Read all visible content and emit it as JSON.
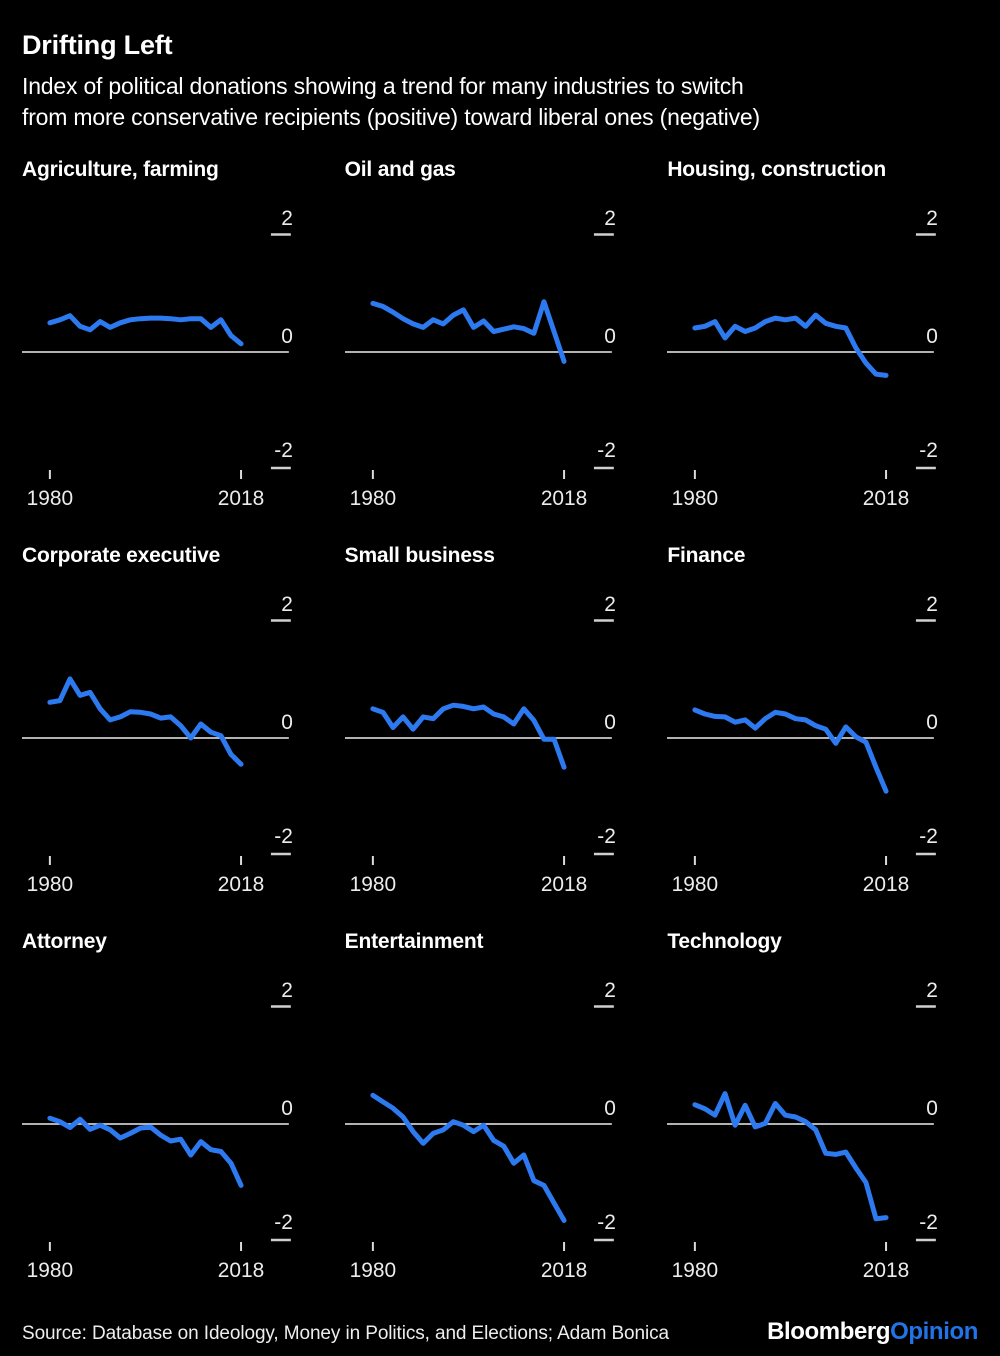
{
  "header": {
    "title": "Drifting Left",
    "subtitle_line1": "Index of political donations showing a trend for many industries to switch",
    "subtitle_line2": "from more conservative recipients (positive) toward liberal ones (negative)"
  },
  "chart_data": {
    "type": "line",
    "layout": "3x3 small multiples",
    "x": [
      1980,
      1982,
      1984,
      1986,
      1988,
      1990,
      1992,
      1994,
      1996,
      1998,
      2000,
      2002,
      2004,
      2006,
      2008,
      2010,
      2012,
      2014,
      2016,
      2018
    ],
    "ylim": [
      -2,
      2
    ],
    "y_tick_labels": [
      "2",
      "0",
      "-2"
    ],
    "x_tick_labels": [
      "1980",
      "2018"
    ],
    "grid": "zero line only",
    "line_color": "#2d7af0",
    "series": [
      {
        "name": "Agriculture, farming",
        "values": [
          0.5,
          0.55,
          0.62,
          0.44,
          0.38,
          0.52,
          0.42,
          0.5,
          0.55,
          0.57,
          0.58,
          0.58,
          0.57,
          0.55,
          0.57,
          0.57,
          0.42,
          0.55,
          0.28,
          0.14
        ]
      },
      {
        "name": "Oil and gas",
        "values": [
          0.83,
          0.78,
          0.68,
          0.57,
          0.48,
          0.42,
          0.55,
          0.48,
          0.63,
          0.72,
          0.42,
          0.53,
          0.35,
          0.39,
          0.43,
          0.4,
          0.32,
          0.86,
          0.35,
          -0.16
        ]
      },
      {
        "name": "Housing, construction",
        "values": [
          0.41,
          0.44,
          0.52,
          0.24,
          0.44,
          0.35,
          0.41,
          0.52,
          0.58,
          0.55,
          0.58,
          0.44,
          0.63,
          0.49,
          0.44,
          0.41,
          0.07,
          -0.19,
          -0.38,
          -0.4
        ]
      },
      {
        "name": "Corporate executive",
        "values": [
          0.61,
          0.64,
          1.01,
          0.73,
          0.78,
          0.5,
          0.31,
          0.36,
          0.45,
          0.44,
          0.41,
          0.34,
          0.36,
          0.21,
          0.0,
          0.24,
          0.1,
          0.04,
          -0.28,
          -0.45
        ]
      },
      {
        "name": "Small business",
        "values": [
          0.5,
          0.44,
          0.18,
          0.36,
          0.15,
          0.36,
          0.33,
          0.5,
          0.56,
          0.54,
          0.5,
          0.53,
          0.41,
          0.36,
          0.24,
          0.5,
          0.3,
          -0.02,
          -0.02,
          -0.5
        ]
      },
      {
        "name": "Finance",
        "values": [
          0.48,
          0.41,
          0.37,
          0.36,
          0.27,
          0.31,
          0.17,
          0.33,
          0.44,
          0.41,
          0.33,
          0.31,
          0.21,
          0.15,
          -0.09,
          0.19,
          0.02,
          -0.07,
          -0.5,
          -0.91
        ]
      },
      {
        "name": "Attorney",
        "values": [
          0.1,
          0.04,
          -0.06,
          0.08,
          -0.09,
          -0.02,
          -0.1,
          -0.24,
          -0.16,
          -0.07,
          -0.05,
          -0.19,
          -0.29,
          -0.26,
          -0.53,
          -0.3,
          -0.44,
          -0.47,
          -0.67,
          -1.05
        ]
      },
      {
        "name": "Entertainment",
        "values": [
          0.49,
          0.38,
          0.27,
          0.12,
          -0.13,
          -0.33,
          -0.16,
          -0.1,
          0.04,
          -0.02,
          -0.13,
          -0.02,
          -0.28,
          -0.38,
          -0.67,
          -0.53,
          -0.97,
          -1.05,
          -1.35,
          -1.65
        ]
      },
      {
        "name": "Technology",
        "values": [
          0.33,
          0.26,
          0.15,
          0.52,
          -0.02,
          0.32,
          -0.05,
          0.01,
          0.35,
          0.15,
          0.12,
          0.04,
          -0.1,
          -0.5,
          -0.52,
          -0.48,
          -0.75,
          -1.0,
          -1.62,
          -1.6
        ]
      }
    ]
  },
  "footer": {
    "source": "Source: Database on Ideology, Money in Politics, and Elections; Adam Bonica",
    "logo_primary": "Bloomberg",
    "logo_accent": "Opinion"
  },
  "colors": {
    "background": "#000000",
    "line": "#2d7af0",
    "text": "#ffffff",
    "axis": "#ededed",
    "logo_accent": "#2174e8"
  }
}
